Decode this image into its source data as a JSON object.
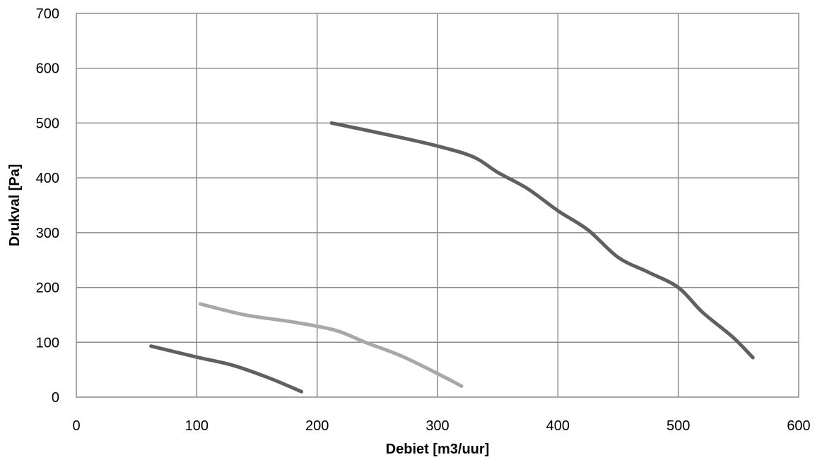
{
  "chart_data": {
    "type": "line",
    "title": "",
    "xlabel": "Debiet [m3/uur]",
    "ylabel": "Drukval [Pa]",
    "xlim": [
      0,
      600
    ],
    "ylim": [
      0,
      700
    ],
    "xticks": [
      0,
      100,
      200,
      300,
      400,
      500,
      600
    ],
    "yticks": [
      0,
      100,
      200,
      300,
      400,
      500,
      600,
      700
    ],
    "grid": true,
    "legend": "none",
    "series": [
      {
        "color": "#606060",
        "points": [
          [
            62,
            93
          ],
          [
            100,
            73
          ],
          [
            130,
            58
          ],
          [
            160,
            35
          ],
          [
            187,
            10
          ]
        ]
      },
      {
        "color": "#a8a8a8",
        "points": [
          [
            103,
            170
          ],
          [
            140,
            150
          ],
          [
            180,
            137
          ],
          [
            215,
            122
          ],
          [
            240,
            100
          ],
          [
            270,
            75
          ],
          [
            300,
            43
          ],
          [
            320,
            20
          ]
        ]
      },
      {
        "color": "#606060",
        "points": [
          [
            212,
            500
          ],
          [
            260,
            478
          ],
          [
            300,
            458
          ],
          [
            330,
            438
          ],
          [
            350,
            410
          ],
          [
            375,
            380
          ],
          [
            400,
            340
          ],
          [
            425,
            305
          ],
          [
            450,
            255
          ],
          [
            475,
            228
          ],
          [
            500,
            200
          ],
          [
            520,
            155
          ],
          [
            545,
            110
          ],
          [
            562,
            72
          ]
        ]
      }
    ]
  }
}
